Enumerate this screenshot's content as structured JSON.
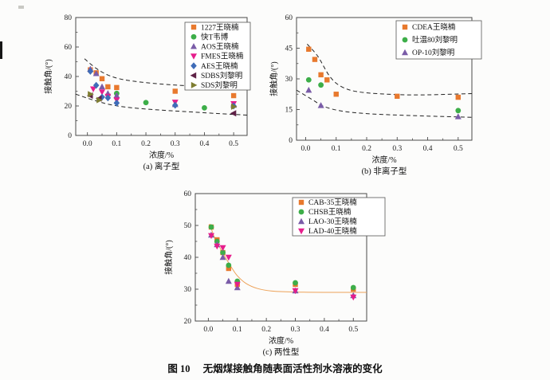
{
  "caption": {
    "label": "图 10",
    "text": "无烟煤接触角随表面活性剂水溶液的变化"
  },
  "chart_data": [
    {
      "id": "a",
      "type": "scatter",
      "subtitle": "(a) 离子型",
      "xlabel": "浓度/%",
      "ylabel": "接触角/(°)",
      "xlim": [
        -0.04,
        0.546
      ],
      "ylim": [
        0,
        80
      ],
      "xticks": [
        0,
        0.1,
        0.2,
        0.3,
        0.4,
        0.5
      ],
      "yticks": [
        0,
        20,
        40,
        60,
        80
      ],
      "grid": false,
      "legend_position": "top-right",
      "series": [
        {
          "name": "1227王晓楠",
          "marker": "square",
          "color": "#e8792e",
          "x": [
            0.01,
            0.03,
            0.05,
            0.07,
            0.1,
            0.3,
            0.5
          ],
          "y": [
            44.5,
            42.5,
            38.5,
            33,
            32.5,
            30,
            27
          ]
        },
        {
          "name": "快T韦博",
          "marker": "circle",
          "color": "#3dae49",
          "x": [
            0.1,
            0.2,
            0.4
          ],
          "y": [
            28.5,
            22.3,
            18.7
          ]
        },
        {
          "name": "AOS王晓楠",
          "marker": "triangle-up",
          "color": "#7a5ca8",
          "x": [
            0.01,
            0.03,
            0.05,
            0.07,
            0.1,
            0.3,
            0.5
          ],
          "y": [
            45,
            42,
            33,
            28.5,
            27,
            21,
            20.5
          ]
        },
        {
          "name": "FMES王晓楠",
          "marker": "triangle-down",
          "color": "#e61e8c",
          "x": [
            0.02,
            0.05,
            0.07,
            0.1,
            0.3,
            0.5
          ],
          "y": [
            31.5,
            29.5,
            26.5,
            24,
            22.5,
            21.5
          ]
        },
        {
          "name": "AES王晓楠",
          "marker": "diamond",
          "color": "#3f6cb8",
          "x": [
            0.01,
            0.03,
            0.05,
            0.07,
            0.1,
            0.3,
            0.5
          ],
          "y": [
            43.5,
            34,
            26,
            25.5,
            22,
            20.5,
            20
          ]
        },
        {
          "name": "SDBS刘黎明",
          "marker": "triangle-left",
          "color": "#5f2247",
          "x": [
            0.01,
            0.04,
            0.5
          ],
          "y": [
            27,
            25,
            15
          ]
        },
        {
          "name": "SDS刘黎明",
          "marker": "triangle-right",
          "color": "#7e7d31",
          "x": [
            0.01,
            0.04,
            0.5
          ],
          "y": [
            28,
            24,
            19.5
          ]
        }
      ],
      "curves": [
        {
          "name": "upper-envelope",
          "style": "dashed",
          "color": "#222222",
          "points": [
            [
              -0.01,
              52
            ],
            [
              0.03,
              45.5
            ],
            [
              0.07,
              41
            ],
            [
              0.12,
              38
            ],
            [
              0.2,
              35.8
            ],
            [
              0.3,
              34.2
            ],
            [
              0.42,
              33
            ],
            [
              0.546,
              31.8
            ]
          ]
        },
        {
          "name": "lower-envelope",
          "style": "dashed",
          "color": "#222222",
          "points": [
            [
              -0.04,
              28
            ],
            [
              0.02,
              24
            ],
            [
              0.08,
              20.8
            ],
            [
              0.15,
              18.8
            ],
            [
              0.25,
              17.2
            ],
            [
              0.35,
              16
            ],
            [
              0.45,
              14.8
            ],
            [
              0.546,
              13.8
            ]
          ]
        }
      ]
    },
    {
      "id": "b",
      "type": "scatter",
      "subtitle": "(b) 非离子型",
      "xlabel": "浓度/%",
      "ylabel": "接触角/(°)",
      "xlim": [
        -0.03,
        0.545
      ],
      "ylim": [
        0,
        60
      ],
      "xticks": [
        0,
        0.1,
        0.2,
        0.3,
        0.4,
        0.5
      ],
      "yticks": [
        0,
        15,
        30,
        45,
        60
      ],
      "grid": false,
      "legend_position": "top-right",
      "series": [
        {
          "name": "CDEA王晓楠",
          "marker": "square",
          "color": "#e8792e",
          "x": [
            0.01,
            0.03,
            0.05,
            0.07,
            0.1,
            0.3,
            0.5
          ],
          "y": [
            44.5,
            39.5,
            32,
            29.5,
            22.5,
            21.5,
            21
          ]
        },
        {
          "name": "吐温80刘黎明",
          "marker": "circle",
          "color": "#3dae49",
          "x": [
            0.01,
            0.05,
            0.5
          ],
          "y": [
            29.5,
            27,
            14.5
          ]
        },
        {
          "name": "OP-10刘黎明",
          "marker": "triangle-up",
          "color": "#7a5ca8",
          "x": [
            0.01,
            0.05,
            0.5
          ],
          "y": [
            24.5,
            17,
            11.5
          ]
        }
      ],
      "curves": [
        {
          "name": "upper-envelope",
          "style": "dashed",
          "color": "#222222",
          "points": [
            [
              0.005,
              47
            ],
            [
              0.04,
              41
            ],
            [
              0.08,
              31
            ],
            [
              0.12,
              26
            ],
            [
              0.18,
              23.5
            ],
            [
              0.3,
              22.3
            ],
            [
              0.4,
              22.2
            ],
            [
              0.545,
              22.8
            ]
          ]
        },
        {
          "name": "lower-envelope",
          "style": "dashed",
          "color": "#222222",
          "points": [
            [
              -0.03,
              24.5
            ],
            [
              0.02,
              20
            ],
            [
              0.06,
              16.5
            ],
            [
              0.12,
              14.2
            ],
            [
              0.2,
              13
            ],
            [
              0.3,
              12.3
            ],
            [
              0.4,
              11.8
            ],
            [
              0.545,
              11.2
            ]
          ]
        }
      ]
    },
    {
      "id": "c",
      "type": "scatter",
      "subtitle": "(c) 两性型",
      "xlabel": "浓度/%",
      "ylabel": "接触角/(°)",
      "xlim": [
        -0.045,
        0.546
      ],
      "ylim": [
        20,
        60
      ],
      "xticks": [
        0,
        0.1,
        0.2,
        0.3,
        0.4,
        0.5
      ],
      "yticks": [
        20,
        30,
        40,
        50,
        60
      ],
      "grid": false,
      "legend_position": "top-right",
      "series": [
        {
          "name": "CAB-35王晓楠",
          "marker": "square",
          "color": "#e8792e",
          "x": [
            0.01,
            0.03,
            0.05,
            0.07,
            0.1,
            0.3,
            0.5
          ],
          "y": [
            49.5,
            45.5,
            41.5,
            36.5,
            31.5,
            31.5,
            30
          ]
        },
        {
          "name": "CHSB王晓楠",
          "marker": "circle",
          "color": "#3dae49",
          "x": [
            0.01,
            0.03,
            0.05,
            0.07,
            0.1,
            0.3,
            0.5
          ],
          "y": [
            49.5,
            45,
            41.5,
            37.5,
            32.5,
            32,
            30.5
          ]
        },
        {
          "name": "LAO-30王晓楠",
          "marker": "triangle-up",
          "color": "#7a5ca8",
          "x": [
            0.01,
            0.03,
            0.05,
            0.07,
            0.1,
            0.3,
            0.5
          ],
          "y": [
            47,
            44,
            40,
            32.5,
            30.5,
            29.5,
            28
          ]
        },
        {
          "name": "LAD-40王晓楠",
          "marker": "triangle-down",
          "color": "#e61e8c",
          "x": [
            0.01,
            0.03,
            0.05,
            0.07,
            0.1,
            0.3,
            0.5
          ],
          "y": [
            46.8,
            43.5,
            43,
            40,
            31.5,
            29.5,
            27.5
          ]
        }
      ],
      "curves": [
        {
          "name": "fit-curve",
          "style": "solid",
          "color": "#eda258",
          "points": [
            [
              0.005,
              50.5
            ],
            [
              0.02,
              46.5
            ],
            [
              0.04,
              43
            ],
            [
              0.06,
              39.8
            ],
            [
              0.08,
              36.8
            ],
            [
              0.1,
              34.2
            ],
            [
              0.13,
              31.8
            ],
            [
              0.17,
              30.2
            ],
            [
              0.22,
              29.4
            ],
            [
              0.3,
              29.1
            ],
            [
              0.4,
              29
            ],
            [
              0.546,
              29
            ]
          ]
        }
      ]
    }
  ]
}
